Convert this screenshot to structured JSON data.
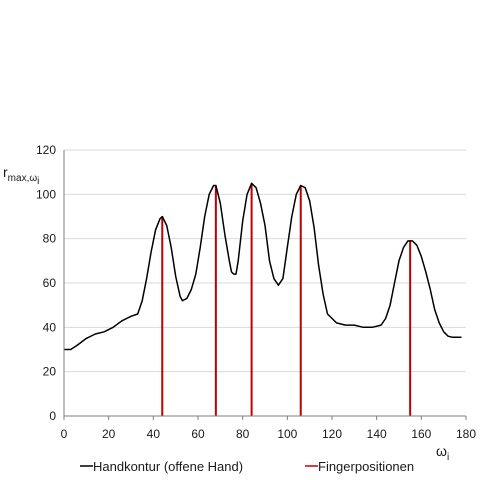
{
  "chart_data": {
    "type": "line",
    "title": "",
    "xlabel": {
      "main": "ω",
      "sub": "i"
    },
    "ylabel": {
      "main": "r",
      "sub": "max,ω",
      "subsub": "i"
    },
    "xlim": [
      0,
      180
    ],
    "ylim": [
      0,
      120
    ],
    "xticks": [
      0,
      20,
      40,
      60,
      80,
      100,
      120,
      140,
      160,
      180
    ],
    "yticks": [
      0,
      20,
      40,
      60,
      80,
      100,
      120
    ],
    "grid": "horizontal",
    "legend": "bottom",
    "colors": {
      "contour": "#000000",
      "fingers": "#c00000",
      "grid": "#d9d9d9"
    },
    "series": [
      {
        "name": "Handkontur (offene Hand)",
        "style": "line",
        "points": [
          [
            0,
            30
          ],
          [
            3,
            30
          ],
          [
            6,
            32
          ],
          [
            10,
            35
          ],
          [
            14,
            37
          ],
          [
            18,
            38
          ],
          [
            22,
            40
          ],
          [
            26,
            43
          ],
          [
            30,
            45
          ],
          [
            33,
            46
          ],
          [
            35,
            52
          ],
          [
            37,
            62
          ],
          [
            39,
            74
          ],
          [
            41,
            84
          ],
          [
            43,
            89
          ],
          [
            44,
            90
          ],
          [
            46,
            86
          ],
          [
            48,
            76
          ],
          [
            50,
            63
          ],
          [
            52,
            54
          ],
          [
            53,
            52
          ],
          [
            55,
            53
          ],
          [
            57,
            57
          ],
          [
            59,
            64
          ],
          [
            61,
            76
          ],
          [
            63,
            90
          ],
          [
            65,
            100
          ],
          [
            67,
            104
          ],
          [
            68,
            104
          ],
          [
            70,
            96
          ],
          [
            72,
            82
          ],
          [
            74,
            70
          ],
          [
            75,
            65
          ],
          [
            76,
            64
          ],
          [
            77,
            64
          ],
          [
            78,
            70
          ],
          [
            80,
            88
          ],
          [
            82,
            100
          ],
          [
            84,
            105
          ],
          [
            86,
            103
          ],
          [
            88,
            96
          ],
          [
            90,
            86
          ],
          [
            92,
            70
          ],
          [
            94,
            62
          ],
          [
            96,
            59
          ],
          [
            98,
            62
          ],
          [
            100,
            76
          ],
          [
            102,
            90
          ],
          [
            104,
            100
          ],
          [
            106,
            104
          ],
          [
            108,
            103
          ],
          [
            110,
            97
          ],
          [
            112,
            85
          ],
          [
            114,
            68
          ],
          [
            116,
            55
          ],
          [
            118,
            46
          ],
          [
            122,
            42
          ],
          [
            126,
            41
          ],
          [
            130,
            41
          ],
          [
            134,
            40
          ],
          [
            138,
            40
          ],
          [
            142,
            41
          ],
          [
            144,
            44
          ],
          [
            146,
            50
          ],
          [
            148,
            60
          ],
          [
            150,
            70
          ],
          [
            152,
            76
          ],
          [
            154,
            79
          ],
          [
            156,
            79
          ],
          [
            158,
            77
          ],
          [
            160,
            72
          ],
          [
            162,
            65
          ],
          [
            164,
            57
          ],
          [
            166,
            48
          ],
          [
            168,
            42
          ],
          [
            170,
            38
          ],
          [
            172,
            36
          ],
          [
            174,
            35.5
          ],
          [
            178,
            35.5
          ]
        ]
      },
      {
        "name": "Fingerpositionen",
        "style": "stems",
        "points": [
          [
            44,
            90
          ],
          [
            68,
            104
          ],
          [
            84,
            105
          ],
          [
            106,
            104
          ],
          [
            155,
            79
          ]
        ]
      }
    ]
  }
}
